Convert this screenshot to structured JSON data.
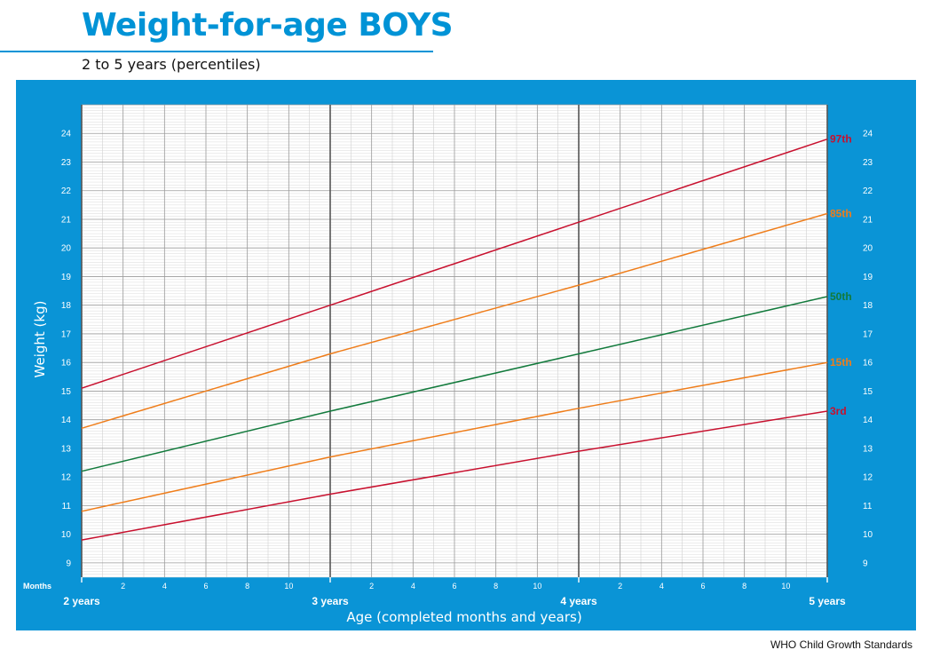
{
  "header": {
    "title": "Weight-for-age BOYS",
    "subtitle": "2 to 5 years (percentiles)"
  },
  "footer": {
    "text": "WHO Child Growth Standards"
  },
  "colors": {
    "brand_blue": "#0093d6",
    "panel_blue": "#0a94d6",
    "p3_97": "#c8102e",
    "p15_85": "#ef7d1a",
    "p50": "#127a3c"
  },
  "chart_data": {
    "type": "line",
    "title": "Weight-for-age BOYS",
    "subtitle": "2 to 5 years (percentiles)",
    "xlabel": "Age (completed months and years)",
    "ylabel": "Weight (kg)",
    "x_unit": "months",
    "xlim": [
      24,
      60
    ],
    "ylim": [
      8.5,
      25
    ],
    "y_ticks": [
      9,
      10,
      11,
      12,
      13,
      14,
      15,
      16,
      17,
      18,
      19,
      20,
      21,
      22,
      23,
      24
    ],
    "month_axis_label": "Months",
    "month_tick_labels": [
      "2",
      "4",
      "6",
      "8",
      "10"
    ],
    "year_tick_labels": [
      {
        "x": 24,
        "label": "2 years"
      },
      {
        "x": 36,
        "label": "3 years"
      },
      {
        "x": 48,
        "label": "4 years"
      },
      {
        "x": 60,
        "label": "5 years"
      }
    ],
    "grid": true,
    "series": [
      {
        "name": "97th",
        "color": "#c8102e",
        "x": [
          24,
          36,
          48,
          60
        ],
        "y": [
          15.1,
          18.0,
          20.9,
          23.8
        ]
      },
      {
        "name": "85th",
        "color": "#ef7d1a",
        "x": [
          24,
          36,
          48,
          60
        ],
        "y": [
          13.7,
          16.3,
          18.7,
          21.2
        ]
      },
      {
        "name": "50th",
        "color": "#127a3c",
        "x": [
          24,
          36,
          48,
          60
        ],
        "y": [
          12.2,
          14.3,
          16.3,
          18.3
        ]
      },
      {
        "name": "15th",
        "color": "#ef7d1a",
        "x": [
          24,
          36,
          48,
          60
        ],
        "y": [
          10.8,
          12.7,
          14.4,
          16.0
        ]
      },
      {
        "name": "3rd",
        "color": "#c8102e",
        "x": [
          24,
          36,
          48,
          60
        ],
        "y": [
          9.8,
          11.4,
          12.9,
          14.3
        ]
      }
    ]
  }
}
